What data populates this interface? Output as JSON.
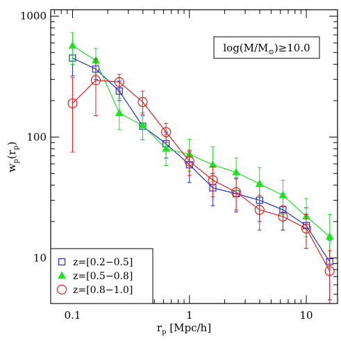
{
  "chart_data": {
    "type": "line",
    "xlabel_main": "r",
    "xlabel_sub": "p",
    "xlabel_unit": " [Mpc/h]",
    "ylabel_main": "w",
    "ylabel_sub": "p",
    "ylabel_open": "(r",
    "ylabel_inner_sub": "p",
    "ylabel_close": ")",
    "xscale": "log",
    "yscale": "log",
    "xlim": [
      0.065,
      18.5
    ],
    "ylim": [
      4.2,
      1130
    ],
    "x_ticks": [
      {
        "value": 0.1,
        "label": "0.1"
      },
      {
        "value": 1,
        "label": "1"
      },
      {
        "value": 10,
        "label": "10"
      }
    ],
    "y_ticks": [
      {
        "value": 10,
        "label": "10"
      },
      {
        "value": 100,
        "label": "100"
      },
      {
        "value": 1000,
        "label": "1000"
      }
    ],
    "annotation": {
      "prefix": "log(M/M",
      "sun": "⊙",
      "suffix": ")≥10.0"
    },
    "legend_position": "bottom-left",
    "series": [
      {
        "name": "z=[0.2−0.5]",
        "color": "#1f2ecf",
        "marker": "square",
        "points": [
          {
            "x": 0.1,
            "y": 450,
            "lo": 320,
            "hi": 570
          },
          {
            "x": 0.158,
            "y": 365,
            "lo": 300,
            "hi": 440
          },
          {
            "x": 0.251,
            "y": 240,
            "lo": 200,
            "hi": 290
          },
          {
            "x": 0.398,
            "y": 123,
            "lo": 95,
            "hi": 150
          },
          {
            "x": 0.631,
            "y": 88,
            "lo": 67,
            "hi": 110
          },
          {
            "x": 1.0,
            "y": 59,
            "lo": 42,
            "hi": 76
          },
          {
            "x": 1.585,
            "y": 38,
            "lo": 27,
            "hi": 50
          },
          {
            "x": 2.512,
            "y": 34,
            "lo": 24,
            "hi": 46
          },
          {
            "x": 3.981,
            "y": 30,
            "lo": 20,
            "hi": 41
          },
          {
            "x": 6.31,
            "y": 25,
            "lo": 17,
            "hi": 34
          },
          {
            "x": 10.0,
            "y": 18.5,
            "lo": 12,
            "hi": 26
          },
          {
            "x": 15.85,
            "y": 9.3,
            "lo": 4.5,
            "hi": 14
          }
        ]
      },
      {
        "name": "z=[0.5−0.8]",
        "color": "#22e022",
        "marker": "triangle",
        "points": [
          {
            "x": 0.1,
            "y": 570,
            "lo": 400,
            "hi": 730
          },
          {
            "x": 0.158,
            "y": 430,
            "lo": 330,
            "hi": 540
          },
          {
            "x": 0.251,
            "y": 158,
            "lo": 115,
            "hi": 210
          },
          {
            "x": 0.398,
            "y": 125,
            "lo": 95,
            "hi": 160
          },
          {
            "x": 0.631,
            "y": 80,
            "lo": 58,
            "hi": 105
          },
          {
            "x": 1.0,
            "y": 72,
            "lo": 52,
            "hi": 96
          },
          {
            "x": 1.585,
            "y": 59,
            "lo": 43,
            "hi": 83
          },
          {
            "x": 2.512,
            "y": 51,
            "lo": 36,
            "hi": 67
          },
          {
            "x": 3.981,
            "y": 41,
            "lo": 28,
            "hi": 56
          },
          {
            "x": 6.31,
            "y": 33,
            "lo": 23,
            "hi": 44
          },
          {
            "x": 10.0,
            "y": 22,
            "lo": 15,
            "hi": 31
          },
          {
            "x": 15.85,
            "y": 15,
            "lo": 9,
            "hi": 23
          }
        ]
      },
      {
        "name": "z=[0.8−1.0]",
        "color": "#e01f1f",
        "marker": "circle",
        "points": [
          {
            "x": 0.1,
            "y": 190,
            "lo": 75,
            "hi": 310
          },
          {
            "x": 0.158,
            "y": 295,
            "lo": 150,
            "hi": 440
          },
          {
            "x": 0.251,
            "y": 285,
            "lo": 240,
            "hi": 330
          },
          {
            "x": 0.398,
            "y": 195,
            "lo": 155,
            "hi": 240
          },
          {
            "x": 0.631,
            "y": 110,
            "lo": 90,
            "hi": 130
          },
          {
            "x": 1.0,
            "y": 63,
            "lo": 48,
            "hi": 78
          },
          {
            "x": 1.585,
            "y": 44,
            "lo": 32,
            "hi": 57
          },
          {
            "x": 2.512,
            "y": 35,
            "lo": 25,
            "hi": 45
          },
          {
            "x": 3.981,
            "y": 25,
            "lo": 17,
            "hi": 33
          },
          {
            "x": 6.31,
            "y": 22,
            "lo": 17,
            "hi": 27
          },
          {
            "x": 10.0,
            "y": 17.5,
            "lo": 12,
            "hi": 23
          },
          {
            "x": 15.85,
            "y": 7.8,
            "lo": 4.2,
            "hi": 11.5
          }
        ]
      }
    ]
  }
}
